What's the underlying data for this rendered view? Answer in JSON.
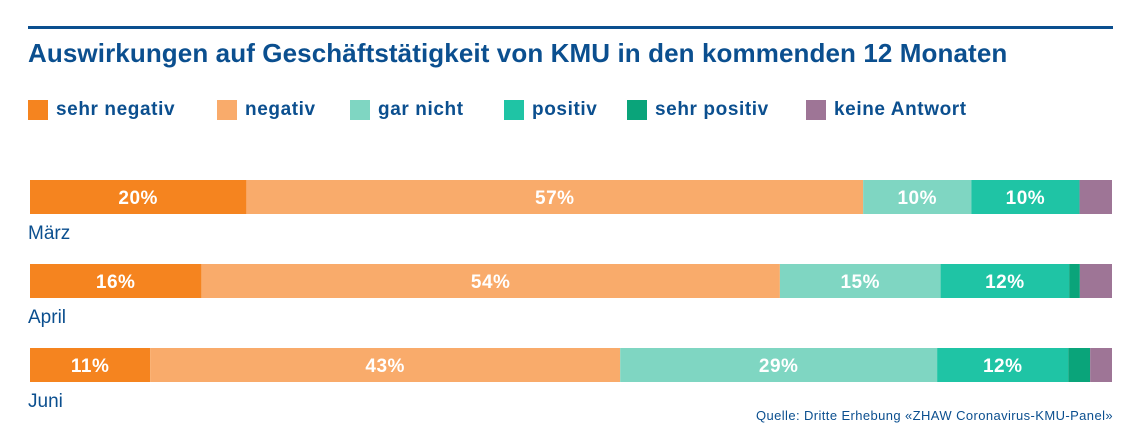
{
  "chart_data": {
    "type": "bar",
    "orientation": "horizontal-stacked-100",
    "title": "Auswirkungen auf Geschäftstätigkeit von KMU in den kommenden 12 Monaten",
    "categories": [
      "März",
      "April",
      "Juni"
    ],
    "series": [
      {
        "name": "sehr negativ",
        "color": "#f5841f",
        "values": [
          20,
          16,
          11
        ],
        "labels": [
          "20%",
          "16%",
          "11%"
        ]
      },
      {
        "name": "negativ",
        "color": "#f9ab6b",
        "values": [
          57,
          54,
          43
        ],
        "labels": [
          "57%",
          "54%",
          "43%"
        ]
      },
      {
        "name": "gar nicht",
        "color": "#7fd6c2",
        "values": [
          10,
          15,
          29
        ],
        "labels": [
          "10%",
          "15%",
          "29%"
        ]
      },
      {
        "name": "positiv",
        "color": "#1fc4a5",
        "values": [
          10,
          12,
          12
        ],
        "labels": [
          "10%",
          "12%",
          "12%"
        ]
      },
      {
        "name": "sehr positiv",
        "color": "#0aa47a",
        "values": [
          0,
          1,
          2
        ],
        "labels": [
          "",
          "",
          ""
        ]
      },
      {
        "name": "keine Antwort",
        "color": "#9e7596",
        "values": [
          3,
          3,
          2
        ],
        "labels": [
          "",
          "",
          ""
        ]
      }
    ],
    "legend_position": "top",
    "xlim": [
      0,
      100
    ],
    "grid": false
  },
  "source": "Quelle: Dritte Erhebung «ZHAW Coronavirus-KMU-Panel»"
}
